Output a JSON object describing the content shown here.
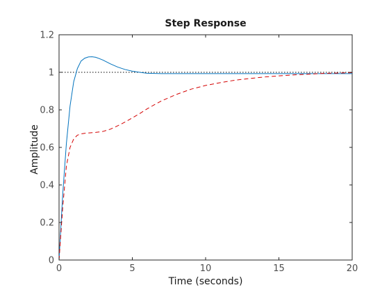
{
  "chart_data": {
    "type": "line",
    "title": "Step Response",
    "xlabel": "Time (seconds)",
    "ylabel": "Amplitude",
    "xlim": [
      0,
      20
    ],
    "ylim": [
      0,
      1.2
    ],
    "xticks": [
      0,
      5,
      10,
      15,
      20
    ],
    "xtick_labels": [
      "0",
      "5",
      "10",
      "15",
      "20"
    ],
    "yticks": [
      0,
      0.2,
      0.4,
      0.6,
      0.8,
      1,
      1.2
    ],
    "ytick_labels": [
      "0",
      "0.2",
      "0.4",
      "0.6",
      "0.8",
      "1",
      "1.2"
    ],
    "grid": false,
    "reference_line": {
      "y": 1,
      "style": "dotted",
      "color": "#000000"
    },
    "series": [
      {
        "style": "solid",
        "color": "#0072bd",
        "x": [
          0,
          0.25,
          0.5,
          0.75,
          1.0,
          1.25,
          1.5,
          1.75,
          2.0,
          2.25,
          2.5,
          2.75,
          3.0,
          3.5,
          4.0,
          4.5,
          5.0,
          5.5,
          6.0,
          7.0,
          8.0,
          10.0,
          12.0,
          15.0,
          18.0,
          20.0
        ],
        "y": [
          0,
          0.35,
          0.62,
          0.82,
          0.95,
          1.02,
          1.06,
          1.075,
          1.082,
          1.083,
          1.08,
          1.073,
          1.065,
          1.045,
          1.028,
          1.015,
          1.006,
          1.0,
          0.995,
          0.993,
          0.993,
          0.993,
          0.993,
          0.993,
          0.993,
          0.993
        ]
      },
      {
        "style": "dashed",
        "color": "#d40000",
        "x": [
          0,
          0.25,
          0.5,
          0.75,
          1.0,
          1.25,
          1.5,
          1.75,
          2.0,
          2.5,
          3.0,
          3.5,
          4.0,
          4.5,
          5.0,
          5.5,
          6.0,
          6.5,
          7.0,
          8.0,
          9.0,
          10.0,
          11.0,
          12.0,
          13.0,
          14.0,
          15.0,
          16.0,
          17.0,
          18.0,
          19.0,
          20.0
        ],
        "y": [
          0,
          0.28,
          0.5,
          0.6,
          0.645,
          0.665,
          0.672,
          0.675,
          0.677,
          0.68,
          0.685,
          0.697,
          0.715,
          0.735,
          0.757,
          0.78,
          0.805,
          0.827,
          0.848,
          0.882,
          0.91,
          0.93,
          0.945,
          0.958,
          0.967,
          0.975,
          0.981,
          0.986,
          0.99,
          0.994,
          0.996,
          0.998
        ]
      }
    ]
  }
}
